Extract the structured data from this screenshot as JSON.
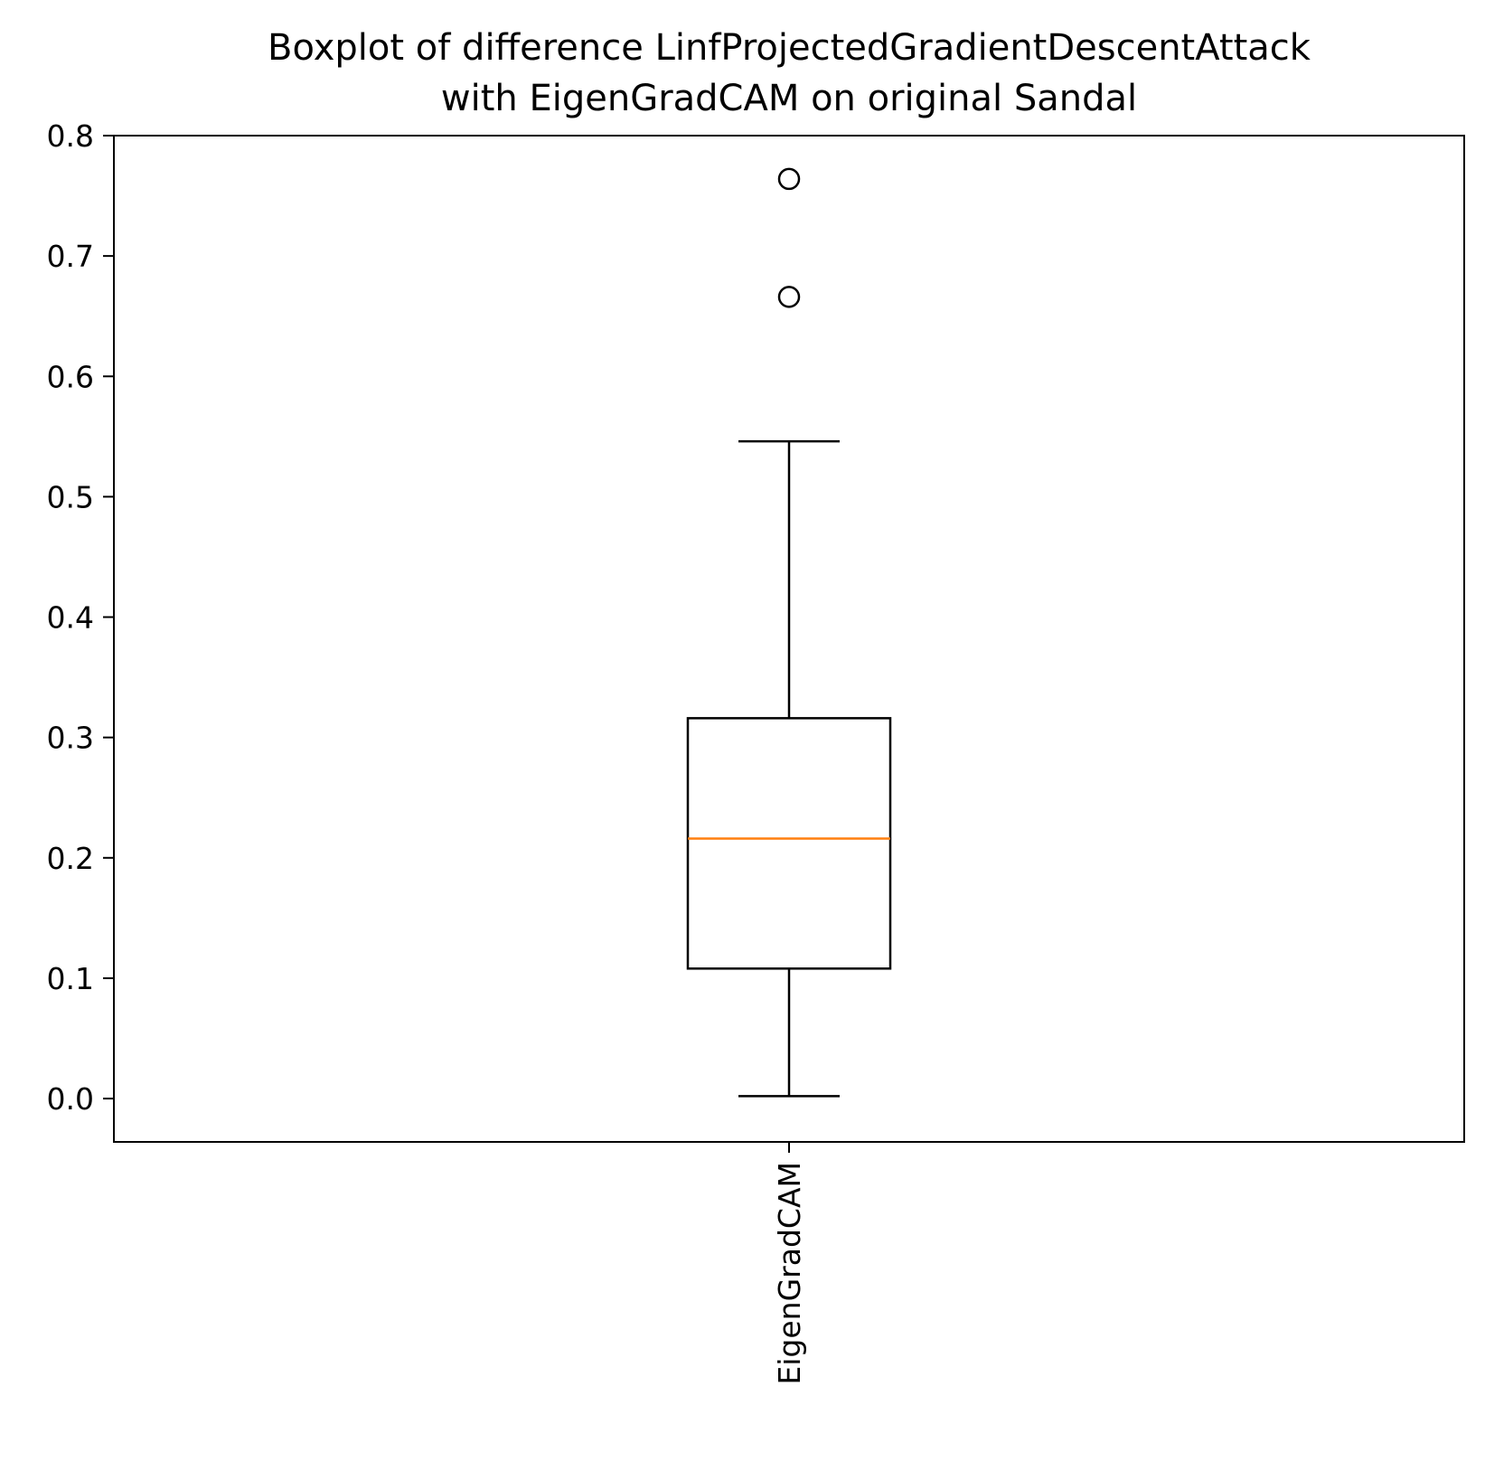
{
  "chart_data": {
    "type": "box",
    "title_lines": [
      "Boxplot of difference LinfProjectedGradientDescentAttack",
      "with EigenGradCAM on original Sandal"
    ],
    "categories": [
      "EigenGradCAM"
    ],
    "boxes": [
      {
        "name": "EigenGradCAM",
        "whisker_low": 0.002,
        "q1": 0.108,
        "median": 0.216,
        "q3": 0.316,
        "whisker_high": 0.546,
        "fliers": [
          0.666,
          0.764
        ]
      }
    ],
    "y_ticks": [
      0.0,
      0.1,
      0.2,
      0.3,
      0.4,
      0.5,
      0.6,
      0.7,
      0.8
    ],
    "ylim": [
      -0.036,
      0.8
    ],
    "grid": false,
    "colors": {
      "box": "#000000",
      "median": "#ff7f0e",
      "flier": "#000000"
    }
  }
}
